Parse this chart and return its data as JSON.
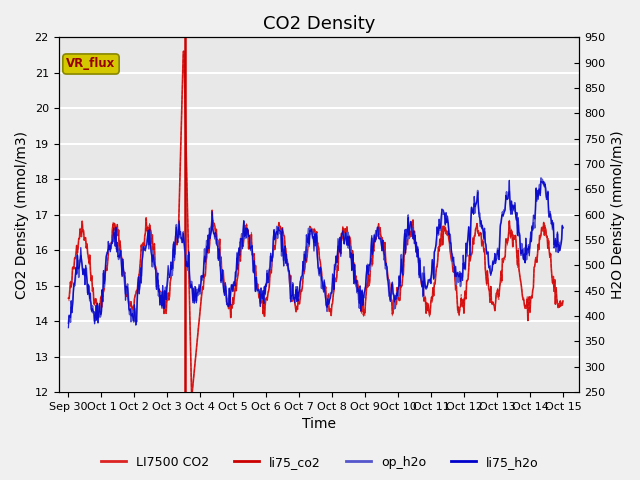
{
  "title": "CO2 Density",
  "xlabel": "Time",
  "ylabel_left": "CO2 Density (mmol/m3)",
  "ylabel_right": "H2O Density (mmol/m3)",
  "ylim_left": [
    12.0,
    22.0
  ],
  "ylim_right": [
    250,
    950
  ],
  "yticks_left": [
    12.0,
    13.0,
    14.0,
    15.0,
    16.0,
    17.0,
    18.0,
    19.0,
    20.0,
    21.0,
    22.0
  ],
  "yticks_right": [
    250,
    300,
    350,
    400,
    450,
    500,
    550,
    600,
    650,
    700,
    750,
    800,
    850,
    900,
    950
  ],
  "xtick_positions": [
    0,
    1,
    2,
    3,
    4,
    5,
    6,
    7,
    8,
    9,
    10,
    11,
    12,
    13,
    14,
    15
  ],
  "xtick_labels": [
    "Sep 30",
    "Oct 1",
    "Oct 2",
    "Oct 3",
    "Oct 4",
    "Oct 5",
    "Oct 6",
    "Oct 7",
    "Oct 8",
    "Oct 9",
    "Oct 10",
    "Oct 11",
    "Oct 12",
    "Oct 13",
    "Oct 14",
    "Oct 15"
  ],
  "xlim": [
    -0.3,
    15.5
  ],
  "vline_x": 3.55,
  "vline_color": "#cc0000",
  "vr_flux_label": "VR_flux",
  "vr_flux_box_color": "#d4c800",
  "vr_flux_text_color": "#990000",
  "background_color": "#e8e8e8",
  "grid_color": "#ffffff",
  "legend_labels": [
    "LI7500 CO2",
    "li75_co2",
    "op_h2o",
    "li75_h2o"
  ],
  "li7500_color": "#dd2222",
  "li75_co2_color": "#cc0000",
  "op_h2o_color": "#5555cc",
  "li75_h2o_color": "#0000cc",
  "title_fontsize": 13,
  "axis_label_fontsize": 10,
  "tick_fontsize": 8
}
